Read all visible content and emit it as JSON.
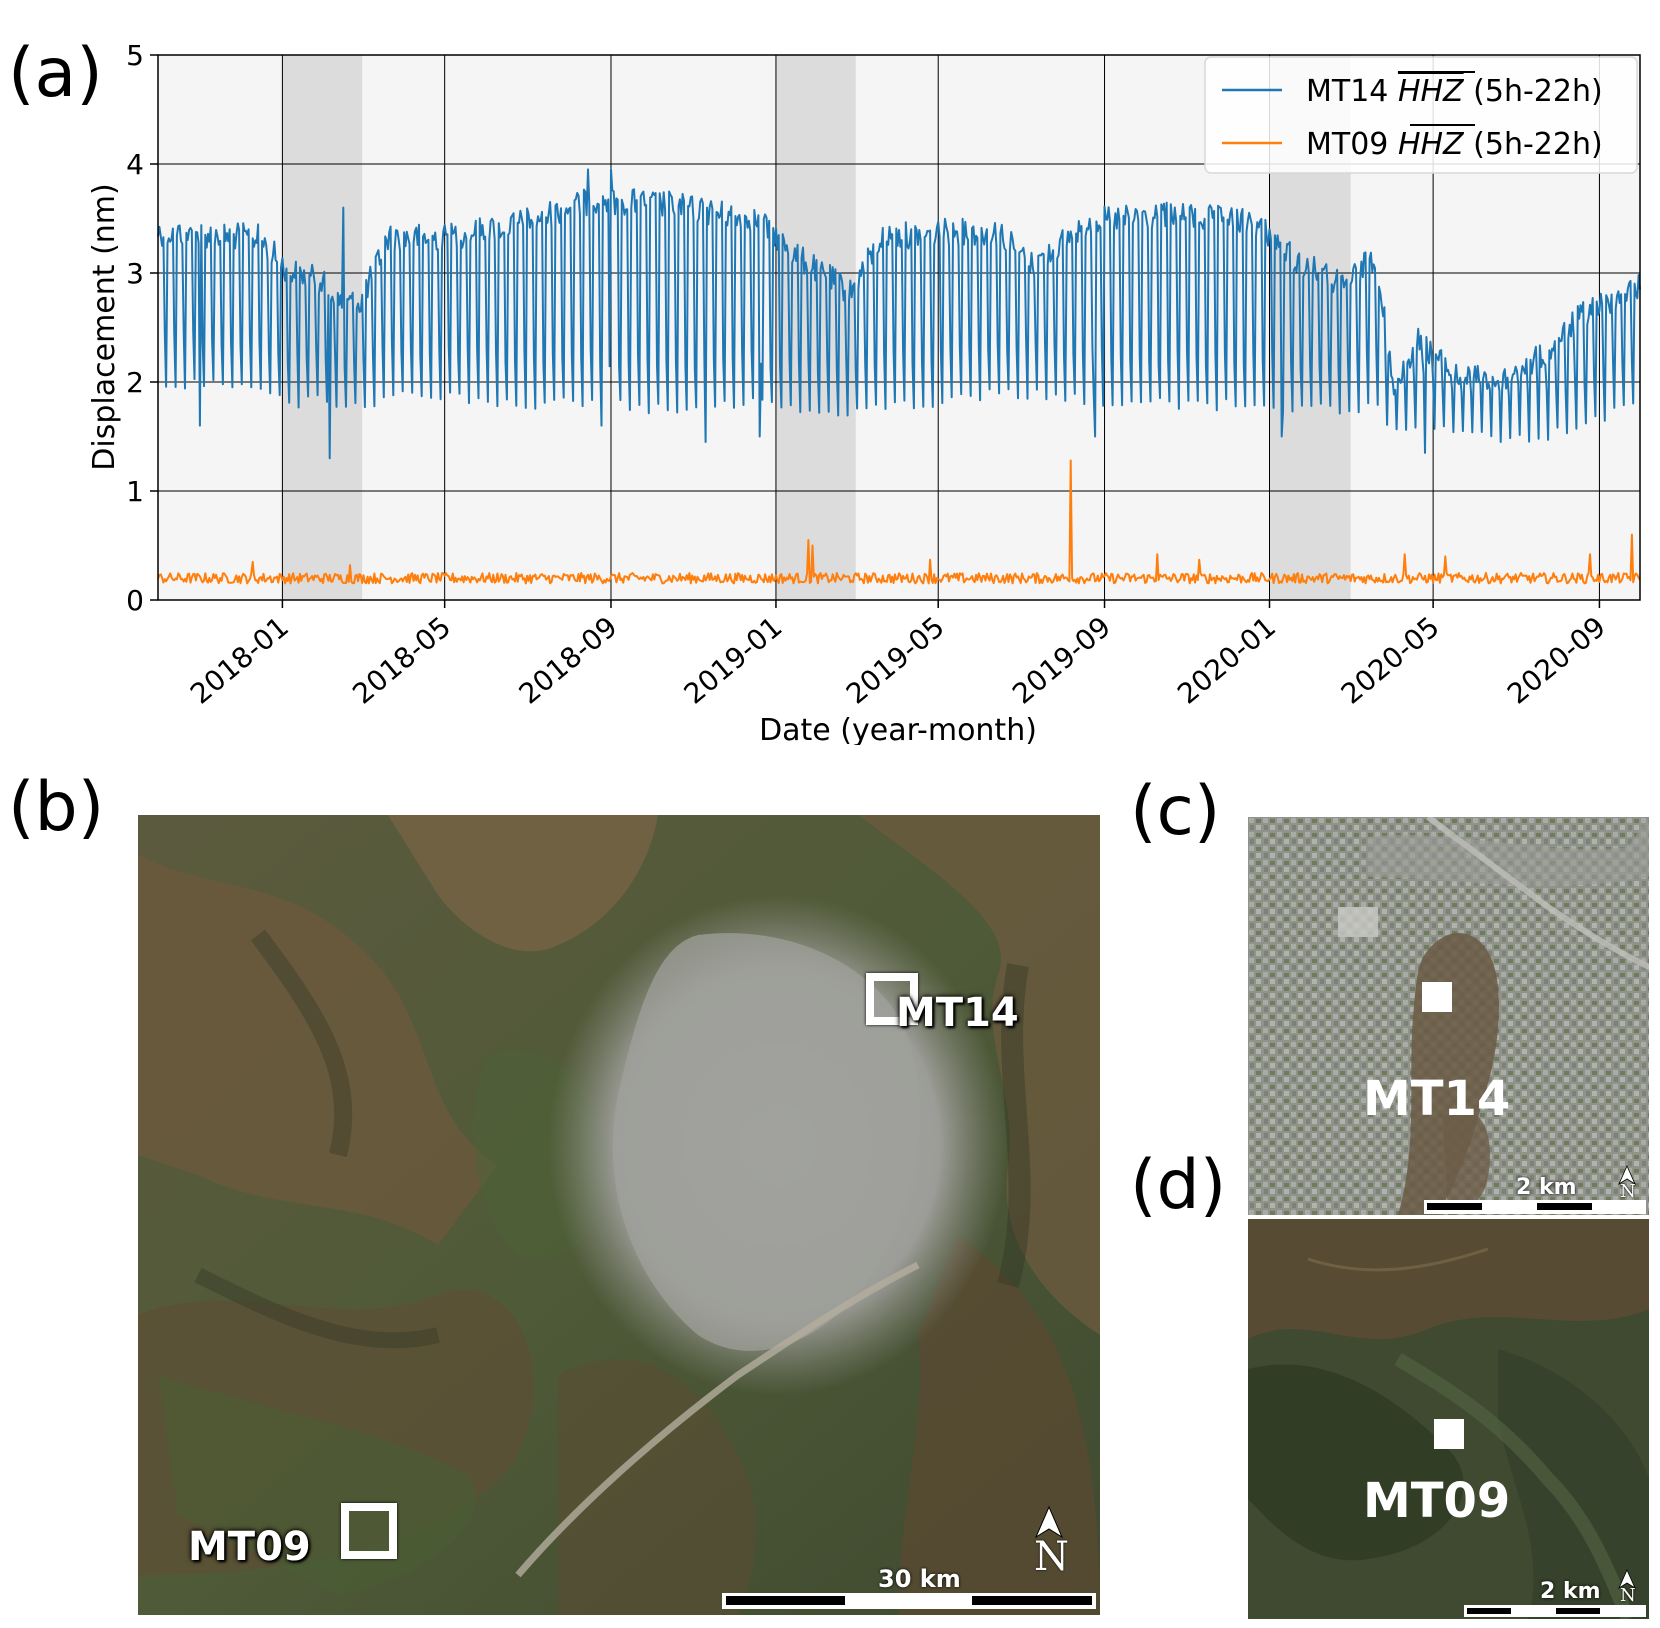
{
  "panels": {
    "a": "(a)",
    "b": "(b)",
    "c": "(c)",
    "d": "(d)"
  },
  "chart_data": {
    "type": "line",
    "xlabel": "Date (year-month)",
    "ylabel": "Displacement (nm)",
    "xlim": [
      "2017-10-01",
      "2020-10-01"
    ],
    "ylim": [
      0,
      5
    ],
    "yticks": [
      0,
      1,
      2,
      3,
      4,
      5
    ],
    "xticks": [
      "2018-01",
      "2018-05",
      "2018-09",
      "2019-01",
      "2019-05",
      "2019-09",
      "2020-01",
      "2020-05",
      "2020-09"
    ],
    "grid": true,
    "legend_position": "top-right",
    "shaded_periods": [
      [
        "2018-01-01",
        "2018-03-01"
      ],
      [
        "2019-01-01",
        "2019-03-01"
      ],
      [
        "2020-01-01",
        "2020-03-01"
      ]
    ],
    "series": [
      {
        "name_station": "MT14",
        "name_channel": "HHZ",
        "name_hours": "(5h-22h)",
        "color": "#1f77b4",
        "values": [
          {
            "x": "2017-10-01",
            "high": 3.5,
            "low": 2.0
          },
          {
            "x": "2017-12-15",
            "high": 3.45,
            "low": 1.95
          },
          {
            "x": "2018-01-05",
            "high": 3.15,
            "low": 1.8
          },
          {
            "x": "2018-01-30",
            "high": 3.05,
            "low": 1.85
          },
          {
            "x": "2018-02-10",
            "high": 2.85,
            "low": 1.75
          },
          {
            "x": "2018-02-28",
            "high": 2.85,
            "low": 1.75
          },
          {
            "x": "2018-03-20",
            "high": 3.45,
            "low": 1.9
          },
          {
            "x": "2018-05-01",
            "high": 3.45,
            "low": 1.85
          },
          {
            "x": "2018-06-15",
            "high": 3.55,
            "low": 1.8
          },
          {
            "x": "2018-07-15",
            "high": 3.65,
            "low": 1.8
          },
          {
            "x": "2018-08-20",
            "high": 3.8,
            "low": 1.8
          },
          {
            "x": "2018-10-15",
            "high": 3.75,
            "low": 1.75
          },
          {
            "x": "2018-12-20",
            "high": 3.6,
            "low": 1.8
          },
          {
            "x": "2019-01-20",
            "high": 3.25,
            "low": 1.75
          },
          {
            "x": "2019-02-25",
            "high": 2.95,
            "low": 1.7
          },
          {
            "x": "2019-03-20",
            "high": 3.45,
            "low": 1.8
          },
          {
            "x": "2019-05-01",
            "high": 3.5,
            "low": 1.8
          },
          {
            "x": "2019-06-15",
            "high": 3.5,
            "low": 1.9
          },
          {
            "x": "2019-07-10",
            "high": 3.2,
            "low": 1.9
          },
          {
            "x": "2019-08-20",
            "high": 3.6,
            "low": 1.85
          },
          {
            "x": "2019-10-15",
            "high": 3.65,
            "low": 1.8
          },
          {
            "x": "2019-12-20",
            "high": 3.6,
            "low": 1.8
          },
          {
            "x": "2020-01-20",
            "high": 3.25,
            "low": 1.75
          },
          {
            "x": "2020-02-25",
            "high": 3.0,
            "low": 1.75
          },
          {
            "x": "2020-03-20",
            "high": 3.3,
            "low": 1.8
          },
          {
            "x": "2020-04-01",
            "high": 2.1,
            "low": 1.55
          },
          {
            "x": "2020-04-20",
            "high": 2.5,
            "low": 1.6
          },
          {
            "x": "2020-05-20",
            "high": 2.15,
            "low": 1.5
          },
          {
            "x": "2020-06-20",
            "high": 2.15,
            "low": 1.5
          },
          {
            "x": "2020-07-20",
            "high": 2.35,
            "low": 1.5
          },
          {
            "x": "2020-08-20",
            "high": 2.75,
            "low": 1.6
          },
          {
            "x": "2020-10-01",
            "high": 3.0,
            "low": 1.8
          }
        ],
        "spikes": [
          {
            "x": "2017-11-01",
            "y": 1.6
          },
          {
            "x": "2018-02-05",
            "y": 1.3
          },
          {
            "x": "2018-02-15",
            "y": 3.6
          },
          {
            "x": "2018-08-15",
            "y": 3.95
          },
          {
            "x": "2018-09-01",
            "y": 3.95
          },
          {
            "x": "2018-08-25",
            "y": 1.6
          },
          {
            "x": "2018-11-10",
            "y": 1.45
          },
          {
            "x": "2018-12-20",
            "y": 1.5
          },
          {
            "x": "2019-08-25",
            "y": 1.5
          },
          {
            "x": "2020-01-10",
            "y": 1.5
          },
          {
            "x": "2020-04-25",
            "y": 1.35
          }
        ]
      },
      {
        "name_station": "MT09",
        "name_channel": "HHZ",
        "name_hours": "(5h-22h)",
        "color": "#ff7f0e",
        "base": 0.2,
        "noise": 0.06,
        "spikes": [
          {
            "x": "2017-12-10",
            "y": 0.35
          },
          {
            "x": "2018-02-20",
            "y": 0.32
          },
          {
            "x": "2019-01-25",
            "y": 0.55
          },
          {
            "x": "2019-01-28",
            "y": 0.5
          },
          {
            "x": "2019-04-25",
            "y": 0.37
          },
          {
            "x": "2019-08-07",
            "y": 1.28
          },
          {
            "x": "2019-10-10",
            "y": 0.42
          },
          {
            "x": "2019-11-10",
            "y": 0.37
          },
          {
            "x": "2020-04-10",
            "y": 0.42
          },
          {
            "x": "2020-05-10",
            "y": 0.4
          },
          {
            "x": "2020-08-25",
            "y": 0.42
          },
          {
            "x": "2020-09-25",
            "y": 0.6
          }
        ]
      }
    ]
  },
  "maps": {
    "b": {
      "labels": {
        "mt14": "MT14",
        "mt09": "MT09"
      },
      "scale": "30 km",
      "north": "N"
    },
    "c": {
      "label": "MT14",
      "scale": "2 km",
      "north": "N"
    },
    "d": {
      "label": "MT09",
      "scale": "2 km",
      "north": "N"
    }
  }
}
